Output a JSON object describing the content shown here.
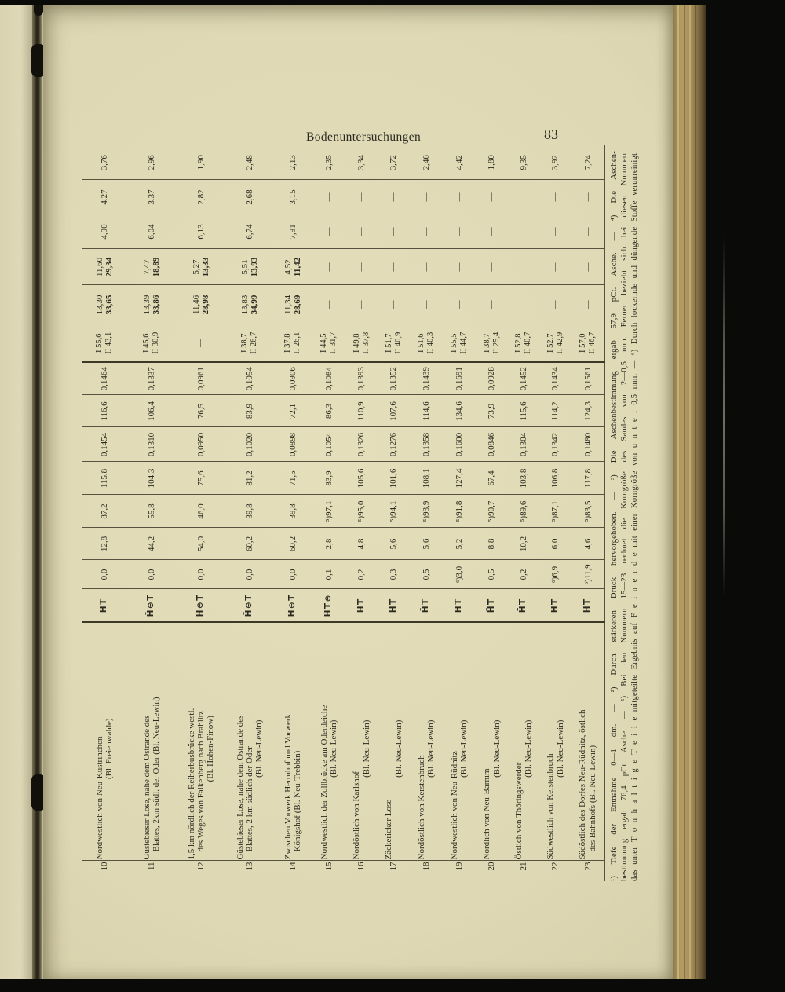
{
  "header": {
    "title": "Bodenuntersuchungen",
    "page_number": "83"
  },
  "colors": {
    "paper": "#e0dab8",
    "ink": "#2b2a20",
    "fore_edge": "#b49c64",
    "background": "#0a0a08"
  },
  "footnotes": [
    "¹) Tiefe der Entnahme 0—1 dm. — ²) Durch stärkeren Druck hervorgehoben. — ³) Die Aschenbestimmung ergab 57,9 pCt. Asche. — ⁴) Die Aschen-",
    "bestimmung ergab 76,4 pCt. Asche. — ⁵) Bei den Nummern 15—23 rechnet die Korngröße des Sandes von 2—0,5 mm. Ferner bezieht sich bei diesen Nummern",
    "das unter T o n h a l t i g e  T e i l e mitgeteilte Ergebnis auf F e i n e r d e mit einer Korngröße von u n t e r  0,5 mm. — ⁶) Durch lockernde und düngende Stoffe verunreinigt."
  ],
  "rows": [
    {
      "no": "10",
      "lines": [
        "Nordwestlich von Neu-Küstrinchen",
        "(Bl. Freienwalde)"
      ],
      "ht": "HT",
      "c1": "0,0",
      "c2": "12,8",
      "c3": "87,2",
      "c4": "115,8",
      "c5": "0,1454",
      "c6": "116,6",
      "c7": "0,1464",
      "i": [
        "I 55,6",
        "II 43,1"
      ],
      "pa": [
        "13,30",
        "33,65"
      ],
      "pb": [
        "11,60",
        "29,34"
      ],
      "c11": "4,90",
      "c12": "4,27",
      "c13": "3,76"
    },
    {
      "no": "11",
      "lines": [
        "Güstebieser Lose, nahe dem Ostrande des",
        "Blattes, 2km südl. der Oder (Bl. Neu-Lewin)"
      ],
      "ht": "H̆⊖T",
      "c1": "0,0",
      "c2": "44,2",
      "c3": "55,8",
      "c4": "104,3",
      "c5": "0,1310",
      "c6": "106,4",
      "c7": "0,1337",
      "i": [
        "I 45,6",
        "II 30,9"
      ],
      "pa": [
        "13,39",
        "33,86"
      ],
      "pb": [
        "7,47",
        "18,89"
      ],
      "c11": "6,04",
      "c12": "3,37",
      "c13": "2,96"
    },
    {
      "no": "12",
      "lines": [
        "1,5 km nördlich der Reiherbusbrücke westl.",
        "des Weges von Falkenberg nach Brahlitz",
        "(Bl. Hohen-Finow)"
      ],
      "ht": "H̆⊖T",
      "c1": "0,0",
      "c2": "54,0",
      "c3": "46,0",
      "c4": "75,6",
      "c5": "0,0950",
      "c6": "76,5",
      "c7": "0,0961",
      "i": "—",
      "pa": [
        "11,46",
        "28,98"
      ],
      "pb": [
        "5,27",
        "13,33"
      ],
      "c11": "6,13",
      "c12": "2,82",
      "c13": "1,90"
    },
    {
      "no": "13",
      "lines": [
        "Güstebieser Lose, nahe dem Ostrande des",
        "Blattes, 2 km südlich der Oder",
        "(Bl. Neu-Lewin)"
      ],
      "ht": "H̆⊖T",
      "c1": "0,0",
      "c2": "60,2",
      "c3": "39,8",
      "c4": "81,2",
      "c5": "0,1020",
      "c6": "83,9",
      "c7": "0,1054",
      "i": [
        "I 38,7",
        "II 26,7"
      ],
      "pa": [
        "13,83",
        "34,99"
      ],
      "pb": [
        "5,51",
        "13,93"
      ],
      "c11": "6,74",
      "c12": "2,68",
      "c13": "2,48"
    },
    {
      "no": "14",
      "lines": [
        "Zwischen Vorwerk Herrnhof und Vorwerk",
        "Königshof (Bl. Neu-Trebbin)"
      ],
      "ht": "H̆⊖T",
      "c1": "0,0",
      "c2": "60,2",
      "c3": "39,8",
      "c4": "71,5",
      "c5": "0,0898",
      "c6": "72,1",
      "c7": "0,0906",
      "i": [
        "I 37,8",
        "II 26,1"
      ],
      "pa": [
        "11,34",
        "28,69"
      ],
      "pb": [
        "4,52",
        "11,42"
      ],
      "c11": "7,91",
      "c12": "3,15",
      "c13": "2,13"
    },
    {
      "no": "15",
      "lines": [
        "Nordwestlich der Zollbrücke am Oderdeiche",
        "(Bl. Neu-Lewin)"
      ],
      "ht": "H̆T⊖",
      "c1": "0,1",
      "c2": "2,8",
      "c3": "⁵)97,1",
      "c4": "83,9",
      "c5": "0,1054",
      "c6": "86,3",
      "c7": "0,1084",
      "i": [
        "I 44,5",
        "II 31,7"
      ],
      "pa": "—",
      "pb": "—",
      "c11": "—",
      "c12": "—",
      "c13": "2,35"
    },
    {
      "no": "16",
      "lines": [
        "Nordöstlich von Karlshof",
        "(Bl. Neu-Lewin)"
      ],
      "ht": "HT",
      "c1": "0,2",
      "c2": "4,8",
      "c3": "⁵)95,0",
      "c4": "105,6",
      "c5": "0,1326",
      "c6": "110,9",
      "c7": "0,1393",
      "i": [
        "I 49,8",
        "II 37,8"
      ],
      "pa": "—",
      "pb": "—",
      "c11": "—",
      "c12": "—",
      "c13": "3,34"
    },
    {
      "no": "17",
      "lines": [
        "Zäckericker Lose",
        "(Bl. Neu-Lewin)"
      ],
      "ht": "HT",
      "c1": "0,3",
      "c2": "5,6",
      "c3": "⁵)94,1",
      "c4": "101,6",
      "c5": "0,1276",
      "c6": "107,6",
      "c7": "0,1352",
      "i": [
        "I 51,7",
        "II 40,9"
      ],
      "pa": "—",
      "pb": "—",
      "c11": "—",
      "c12": "—",
      "c13": "3,72"
    },
    {
      "no": "18",
      "lines": [
        "Nordöstlich von Kerstenbruch",
        "(Bl. Neu-Lewin)"
      ],
      "ht": "H̆T",
      "c1": "0,5",
      "c2": "5,6",
      "c3": "⁵)93,9",
      "c4": "108,1",
      "c5": "0,1358",
      "c6": "114,6",
      "c7": "0,1439",
      "i": [
        "I 51,6",
        "II 40,3"
      ],
      "pa": "—",
      "pb": "—",
      "c11": "—",
      "c12": "—",
      "c13": "2,46"
    },
    {
      "no": "19",
      "lines": [
        "Nordwestlich von Neu-Rüdnitz",
        "(Bl. Neu-Lewin)"
      ],
      "ht": "HT",
      "c1": "⁶)3,0",
      "c2": "5,2",
      "c3": "⁵)91,8",
      "c4": "127,4",
      "c5": "0,1600",
      "c6": "134,6",
      "c7": "0,1691",
      "i": [
        "I 55,5",
        "II 44,7"
      ],
      "pa": "—",
      "pb": "—",
      "c11": "—",
      "c12": "—",
      "c13": "4,42"
    },
    {
      "no": "20",
      "lines": [
        "Nördlich von Neu-Barnim",
        "(Bl. Neu-Lewin)"
      ],
      "ht": "H̆T",
      "c1": "0,5",
      "c2": "8,8",
      "c3": "⁵)90,7",
      "c4": "67,4",
      "c5": "0,0846",
      "c6": "73,9",
      "c7": "0,0928",
      "i": [
        "I 38,7",
        "II 25,4"
      ],
      "pa": "—",
      "pb": "—",
      "c11": "—",
      "c12": "—",
      "c13": "1,80"
    },
    {
      "no": "21",
      "lines": [
        "Östlich von Thöringswerder",
        "(Bl. Neu-Lewin)"
      ],
      "ht": "H̄T",
      "c1": "0,2",
      "c2": "10,2",
      "c3": "⁵)89,6",
      "c4": "103,8",
      "c5": "0,1304",
      "c6": "115,6",
      "c7": "0,1452",
      "i": [
        "I 52,8",
        "II 40,7"
      ],
      "pa": "—",
      "pb": "—",
      "c11": "—",
      "c12": "—",
      "c13": "9,35"
    },
    {
      "no": "22",
      "lines": [
        "Südwestlich von Kerstenbruch",
        "(Bl. Neu-Lewin)"
      ],
      "ht": "HT",
      "c1": "⁶)6,9",
      "c2": "6,0",
      "c3": "⁵)87,1",
      "c4": "106,8",
      "c5": "0,1342",
      "c6": "114,2",
      "c7": "0,1434",
      "i": [
        "I 52,7",
        "II 42,9"
      ],
      "pa": "—",
      "pb": "—",
      "c11": "—",
      "c12": "—",
      "c13": "3,92"
    },
    {
      "no": "23",
      "lines": [
        "Südöstlich des Dorfes Neu-Rüdnitz, östlich",
        "des Bahnhofs (Bl. Neu-Lewin)"
      ],
      "ht": "H̄T",
      "c1": "⁶)11,9",
      "c2": "4,6",
      "c3": "⁵)83,5",
      "c4": "117,8",
      "c5": "0,1480",
      "c6": "124,3",
      "c7": "0,1561",
      "i": [
        "I 57,0",
        "II 46,7"
      ],
      "pa": "—",
      "pb": "—",
      "c11": "—",
      "c12": "—",
      "c13": "7,24"
    }
  ]
}
